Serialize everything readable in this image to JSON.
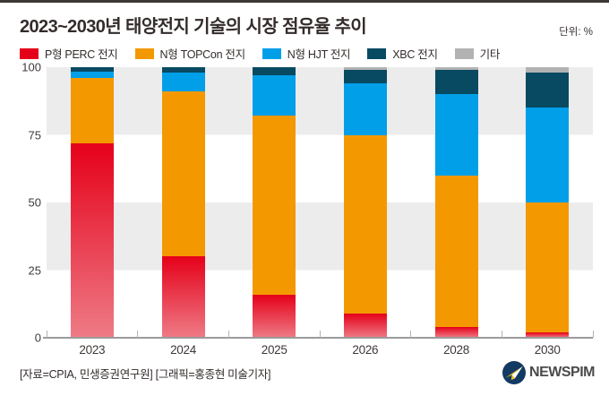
{
  "header": {
    "title": "2023~2030년 태양전지 기술의 시장 점유율 추이",
    "unit_label": "단위: %"
  },
  "legend": [
    {
      "label": "P형 PERC 전지",
      "color": "#e50019"
    },
    {
      "label": "N형 TOPCon 전지",
      "color": "#f49800"
    },
    {
      "label": "N형 HJT 전지",
      "color": "#009fe8"
    },
    {
      "label": "XBC 전지",
      "color": "#084a62"
    },
    {
      "label": "기타",
      "color": "#b2b2b2"
    }
  ],
  "chart_data": {
    "type": "bar",
    "stacked": true,
    "title": "2023~2030년 태양전지 기술의 시장 점유율 추이",
    "unit": "%",
    "categories": [
      "2023",
      "2024",
      "2025",
      "2026",
      "2028",
      "2030"
    ],
    "series": [
      {
        "name": "P형 PERC 전지",
        "color": "#e50019",
        "gradient_bottom": "#ee7b86",
        "values": [
          72,
          30,
          16,
          9,
          4,
          2
        ]
      },
      {
        "name": "N형 TOPCon 전지",
        "color": "#f49800",
        "values": [
          24,
          61,
          66,
          66,
          56,
          48
        ]
      },
      {
        "name": "N형 HJT 전지",
        "color": "#009fe8",
        "values": [
          2.5,
          7,
          15,
          19,
          30,
          35
        ]
      },
      {
        "name": "XBC 전지",
        "color": "#084a62",
        "values": [
          1.5,
          2,
          3,
          5,
          9,
          13
        ]
      },
      {
        "name": "기타",
        "color": "#b2b2b2",
        "values": [
          0,
          0,
          0,
          1,
          1,
          2
        ]
      }
    ],
    "y_ticks": [
      0,
      25,
      50,
      75,
      100
    ],
    "ylim": [
      0,
      100
    ],
    "grid": "striped-bands",
    "legend_position": "top"
  },
  "footer": {
    "source": "[자료=CPIA, 민생증권연구원] [그래픽=홍종현 미술기자]",
    "logo_text": "NEWSPIM"
  }
}
